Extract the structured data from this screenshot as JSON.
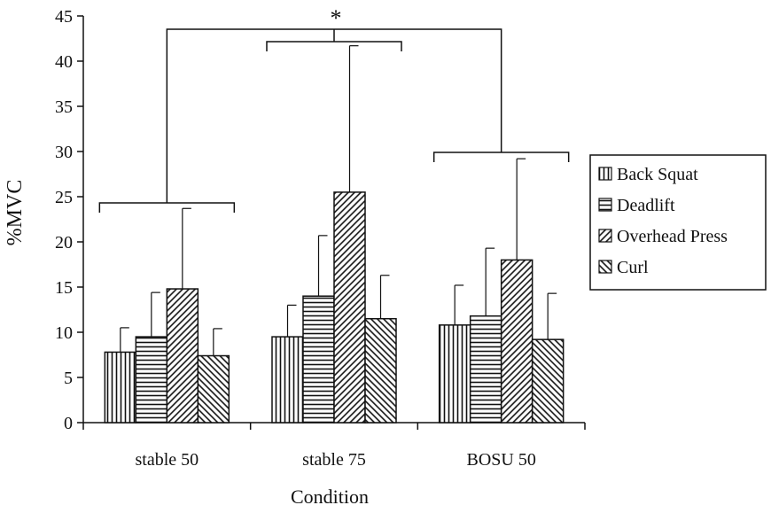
{
  "chart_data": {
    "type": "bar",
    "title": "",
    "xlabel": "Condition",
    "ylabel": "%MVC",
    "ylim": [
      0,
      45
    ],
    "yticks": [
      0,
      5,
      10,
      15,
      20,
      25,
      30,
      35,
      40,
      45
    ],
    "categories": [
      "stable 50",
      "stable 75",
      "BOSU 50"
    ],
    "series": [
      {
        "name": "Back Squat",
        "pattern": "vertical",
        "values": [
          7.8,
          9.5,
          10.8
        ],
        "errors": [
          2.7,
          3.5,
          4.4
        ]
      },
      {
        "name": "Deadlift",
        "pattern": "horizontal",
        "values": [
          9.5,
          14.0,
          11.8
        ],
        "errors": [
          4.9,
          6.7,
          7.5
        ]
      },
      {
        "name": "Overhead Press",
        "pattern": "diagonal-up",
        "values": [
          14.8,
          25.5,
          18.0
        ],
        "errors": [
          8.9,
          16.2,
          11.2
        ]
      },
      {
        "name": "Curl",
        "pattern": "diagonal-down",
        "values": [
          7.4,
          11.5,
          9.2
        ],
        "errors": [
          3.0,
          4.8,
          5.1
        ]
      }
    ],
    "grid": false,
    "legend_position": "right",
    "annotations": [
      {
        "type": "significance",
        "text": "*"
      }
    ],
    "colors": {
      "bar_fill": "#ffffff",
      "bar_stroke": "#111111",
      "hatch": "#111111",
      "axis": "#111111"
    }
  }
}
